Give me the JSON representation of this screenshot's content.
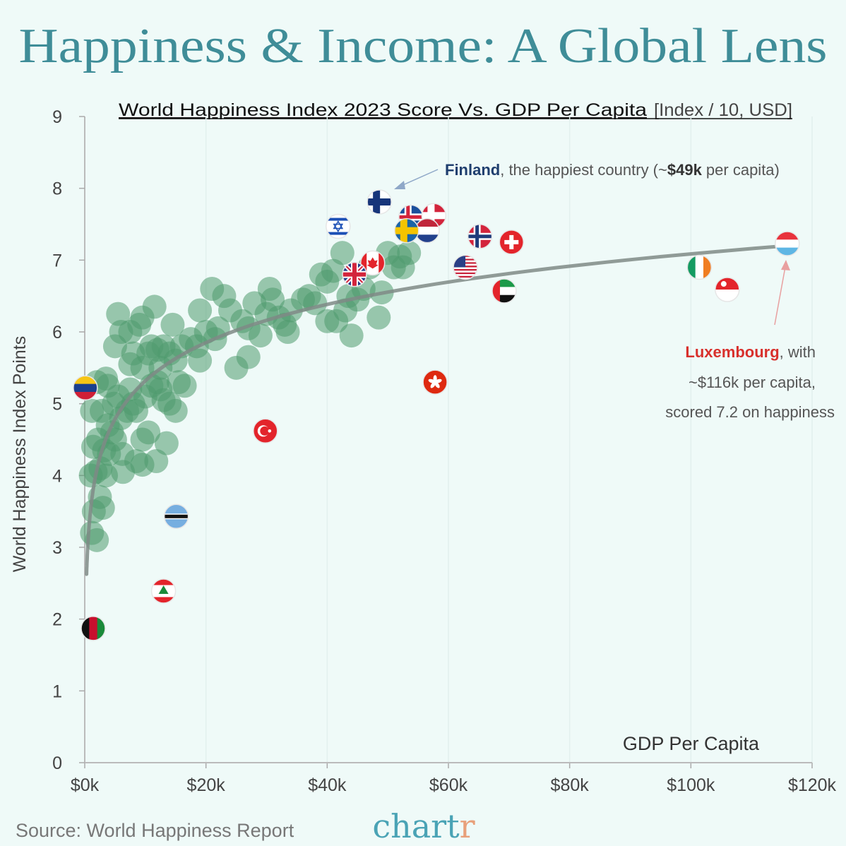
{
  "title": "Happiness & Income: A Global Lens",
  "subtitle": "World Happiness Index 2023 Score Vs. GDP Per Capita",
  "subtitle_units": "[Index / 10, USD]",
  "source": "Source: World Happiness Report",
  "logo": {
    "text_main": "chart",
    "text_accent": "r",
    "color_main": "#4aa3b5",
    "color_accent": "#e8a07a"
  },
  "colors": {
    "bubble": "#4f9a6e",
    "trend": "#7f8a86",
    "title": "#3f8d98",
    "finland": "#1f3e6e",
    "luxembourg": "#d8302c",
    "background": "#effaf8"
  },
  "annotations": {
    "finland": {
      "name": "Finland",
      "text1": ", the happiest country (~",
      "bold": "$49k",
      "text2": " per capita)"
    },
    "luxembourg": {
      "name": "Luxembourg",
      "line1": ", with",
      "line2": "~$116k per capita,",
      "line3": "scored 7.2 on happiness"
    }
  },
  "chart_data": {
    "type": "scatter",
    "title": "World Happiness Index 2023 Score Vs. GDP Per Capita",
    "xlabel": "GDP Per Capita",
    "ylabel": "World Happiness Index Points",
    "xlim": [
      0,
      120
    ],
    "ylim": [
      0,
      9
    ],
    "x_ticks": [
      "$0k",
      "$20k",
      "$40k",
      "$60k",
      "$80k",
      "$100k",
      "$120k"
    ],
    "x_tick_values": [
      0,
      20,
      40,
      60,
      80,
      100,
      120
    ],
    "y_ticks": [
      "0",
      "1",
      "2",
      "3",
      "4",
      "5",
      "6",
      "7",
      "8",
      "9"
    ],
    "grid": "vertical faint",
    "trendline": {
      "type": "logarithmic",
      "a": 3.55,
      "b": 0.768,
      "x_range": [
        0.3,
        116
      ]
    },
    "points": [
      [
        1.2,
        3.2
      ],
      [
        2,
        3.1
      ],
      [
        1.5,
        3.5
      ],
      [
        3,
        3.55
      ],
      [
        2.5,
        3.7
      ],
      [
        1,
        4.0
      ],
      [
        1.8,
        4.05
      ],
      [
        2.6,
        4.1
      ],
      [
        3.5,
        4.0
      ],
      [
        1.4,
        4.4
      ],
      [
        2.2,
        4.5
      ],
      [
        3.2,
        4.35
      ],
      [
        4,
        4.3
      ],
      [
        1.2,
        4.9
      ],
      [
        2.8,
        4.9
      ],
      [
        3.8,
        4.7
      ],
      [
        4.5,
        4.6
      ],
      [
        5,
        4.5
      ],
      [
        6.3,
        4.05
      ],
      [
        6.2,
        4.3
      ],
      [
        7,
        4.9
      ],
      [
        8.5,
        4.2
      ],
      [
        9.5,
        4.5
      ],
      [
        10.5,
        4.6
      ],
      [
        11.8,
        4.2
      ],
      [
        13.5,
        4.45
      ],
      [
        9.5,
        4.15
      ],
      [
        2,
        5.3
      ],
      [
        3.5,
        5.35
      ],
      [
        3.8,
        5.25
      ],
      [
        4.8,
        5.0
      ],
      [
        5.5,
        5.1
      ],
      [
        6,
        4.8
      ],
      [
        7.5,
        5.2
      ],
      [
        8,
        5.0
      ],
      [
        8.5,
        4.9
      ],
      [
        10,
        5.1
      ],
      [
        11,
        5.25
      ],
      [
        12,
        5.3
      ],
      [
        12.5,
        5.2
      ],
      [
        13,
        5.05
      ],
      [
        14,
        5.0
      ],
      [
        15,
        4.9
      ],
      [
        15.5,
        5.3
      ],
      [
        16.5,
        5.25
      ],
      [
        12,
        5.75
      ],
      [
        13,
        5.8
      ],
      [
        14,
        5.7
      ],
      [
        15,
        5.6
      ],
      [
        9.5,
        5.5
      ],
      [
        10.5,
        5.7
      ],
      [
        11,
        5.8
      ],
      [
        7.5,
        5.55
      ],
      [
        8,
        5.7
      ],
      [
        5,
        5.8
      ],
      [
        6,
        6.0
      ],
      [
        5.5,
        6.25
      ],
      [
        7.5,
        6.0
      ],
      [
        9,
        6.1
      ],
      [
        9.5,
        6.2
      ],
      [
        11.5,
        6.35
      ],
      [
        14.5,
        6.1
      ],
      [
        12.5,
        5.5
      ],
      [
        16,
        5.8
      ],
      [
        17.5,
        5.9
      ],
      [
        19,
        5.6
      ],
      [
        18.5,
        5.8
      ],
      [
        20,
        6.0
      ],
      [
        19,
        6.3
      ],
      [
        21,
        6.6
      ],
      [
        21.5,
        5.9
      ],
      [
        22,
        6.05
      ],
      [
        23,
        6.5
      ],
      [
        24,
        6.3
      ],
      [
        25,
        5.5
      ],
      [
        26,
        6.15
      ],
      [
        27,
        5.65
      ],
      [
        27,
        6.05
      ],
      [
        28,
        6.4
      ],
      [
        29,
        5.95
      ],
      [
        30,
        6.25
      ],
      [
        30.5,
        6.6
      ],
      [
        31,
        6.45
      ],
      [
        32,
        6.2
      ],
      [
        33,
        6.1
      ],
      [
        33.5,
        6.0
      ],
      [
        34,
        6.3
      ],
      [
        36,
        6.45
      ],
      [
        37,
        6.5
      ],
      [
        38,
        6.4
      ],
      [
        39,
        6.8
      ],
      [
        40,
        6.7
      ],
      [
        40,
        6.15
      ],
      [
        41,
        6.85
      ],
      [
        41.5,
        6.15
      ],
      [
        42.5,
        7.1
      ],
      [
        43,
        6.3
      ],
      [
        43.5,
        6.5
      ],
      [
        44,
        5.95
      ],
      [
        45,
        6.45
      ],
      [
        46,
        6.6
      ],
      [
        47,
        6.9
      ],
      [
        48.5,
        6.2
      ],
      [
        49,
        6.55
      ],
      [
        50,
        7.1
      ],
      [
        51,
        6.9
      ],
      [
        52,
        7.05
      ],
      [
        52.5,
        6.9
      ],
      [
        53.5,
        7.1
      ]
    ],
    "flagged": [
      {
        "flag": "finland",
        "x": 48.6,
        "y": 7.81
      },
      {
        "flag": "israel",
        "x": 41.8,
        "y": 7.47
      },
      {
        "flag": "iceland",
        "x": 53.8,
        "y": 7.6
      },
      {
        "flag": "denmark",
        "x": 57.6,
        "y": 7.62
      },
      {
        "flag": "netherlands",
        "x": 56.5,
        "y": 7.41
      },
      {
        "flag": "sweden",
        "x": 53.1,
        "y": 7.41
      },
      {
        "flag": "norway",
        "x": 65.2,
        "y": 7.33
      },
      {
        "flag": "switzerland",
        "x": 70.4,
        "y": 7.25
      },
      {
        "flag": "canada",
        "x": 47.5,
        "y": 6.96
      },
      {
        "flag": "united-kingdom",
        "x": 44.5,
        "y": 6.8
      },
      {
        "flag": "united-states",
        "x": 62.8,
        "y": 6.9
      },
      {
        "flag": "uae",
        "x": 69.2,
        "y": 6.57
      },
      {
        "flag": "ireland",
        "x": 101.4,
        "y": 6.9
      },
      {
        "flag": "singapore",
        "x": 106,
        "y": 6.59
      },
      {
        "flag": "luxembourg",
        "x": 115.9,
        "y": 7.23
      },
      {
        "flag": "hong-kong",
        "x": 57.8,
        "y": 5.3
      },
      {
        "flag": "turkey",
        "x": 29.8,
        "y": 4.62
      },
      {
        "flag": "venezuela",
        "x": 0.1,
        "y": 5.22
      },
      {
        "flag": "botswana",
        "x": 15.1,
        "y": 3.43
      },
      {
        "flag": "lebanon",
        "x": 13.0,
        "y": 2.39
      },
      {
        "flag": "afghanistan",
        "x": 1.4,
        "y": 1.87
      }
    ]
  }
}
